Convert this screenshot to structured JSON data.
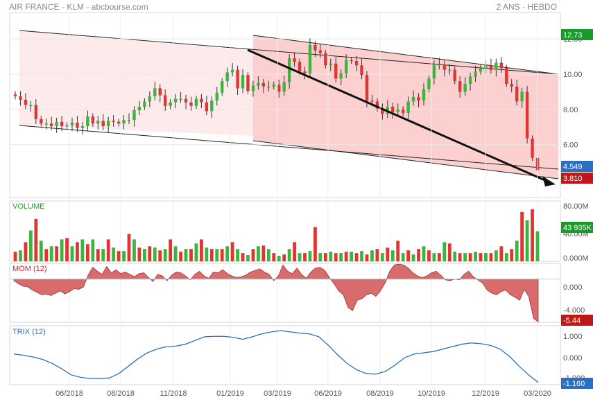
{
  "header": {
    "title": "AIR FRANCE - KLM - abcbourse.com",
    "period": "2 ANS - HEBDO"
  },
  "colors": {
    "up": "#3db53d",
    "down": "#e03535",
    "trix_line": "#2a6fc2",
    "mom_fill": "#d86b6b",
    "channel_light": "#fdebeb",
    "channel_dark": "#fdd0d0",
    "last_badge": "#2a6fc2",
    "high_badge": "#1a9a2a",
    "low_badge": "#c01818"
  },
  "x_ticks": [
    "06/2018",
    "08/2018",
    "11/2018",
    "01/2019",
    "03/2019",
    "06/2019",
    "08/2019",
    "10/2019",
    "12/2019",
    "03/2020"
  ],
  "price_panel": {
    "y_ticks": [
      "12.00",
      "10.00",
      "8.00",
      "6.00"
    ],
    "badge_high": "12.73",
    "badge_last": "4.549",
    "badge_low": "3.810"
  },
  "volume_panel": {
    "label": "VOLUME",
    "y_ticks": [
      "80.00M",
      "40.00M",
      "0.000M"
    ],
    "badge": "43 935K"
  },
  "mom_panel": {
    "label": "MOM (12)",
    "y_ticks": [
      "0.000",
      "-4.000"
    ],
    "badge": "-5.44"
  },
  "trix_panel": {
    "label": "TRIX (12)",
    "y_ticks": [
      "1.000",
      "0.000",
      "-1.000"
    ],
    "badge": "-1.160"
  },
  "chart_data": [
    {
      "type": "candlestick",
      "title": "AIR FRANCE - KLM",
      "frequency": "weekly",
      "ylim": [
        3.0,
        13.5
      ],
      "weeks": 102,
      "close": [
        8.75,
        8.55,
        8.25,
        8.25,
        7.45,
        7.2,
        7.2,
        7.05,
        7.3,
        7.05,
        7.1,
        7.25,
        6.95,
        7.05,
        7.6,
        7.2,
        7.35,
        7.05,
        7.35,
        7.3,
        7.2,
        7.4,
        7.4,
        7.95,
        8.15,
        8.45,
        8.75,
        9.2,
        8.8,
        8.2,
        8.4,
        8.6,
        8.6,
        8.4,
        8.2,
        8.6,
        8.4,
        7.9,
        8.5,
        8.95,
        9.6,
        10.1,
        10.25,
        9.2,
        9.95,
        9.05,
        9.35,
        9.5,
        9.3,
        9.3,
        9.4,
        9.0,
        9.55,
        10.9,
        10.7,
        10.15,
        10.05,
        11.65,
        11.35,
        11.2,
        10.5,
        10.6,
        9.75,
        10.05,
        10.8,
        10.75,
        10.5,
        9.95,
        8.5,
        8.45,
        8.05,
        7.75,
        8.15,
        7.85,
        8.0,
        7.8,
        8.45,
        8.7,
        8.5,
        9.15,
        9.75,
        10.5,
        10.55,
        10.25,
        10.25,
        9.6,
        9.0,
        9.45,
        9.85,
        10.15,
        10.35,
        10.5,
        10.25,
        10.65,
        10.35,
        9.45,
        9.3,
        8.45,
        9.0,
        6.35,
        5.25,
        4.55
      ],
      "high_label": 12.73,
      "last": 4.549,
      "low_label": 3.81,
      "channel_lines": "descending regression channel with trend arrow"
    },
    {
      "type": "bar",
      "title": "VOLUME",
      "unit": "M",
      "ylim": [
        0,
        80
      ],
      "values": [
        14,
        16,
        28,
        45,
        62,
        30,
        18,
        22,
        22,
        32,
        34,
        22,
        28,
        32,
        25,
        32,
        18,
        18,
        32,
        20,
        15,
        15,
        40,
        32,
        20,
        18,
        22,
        20,
        16,
        18,
        32,
        22,
        14,
        18,
        18,
        26,
        32,
        20,
        18,
        18,
        18,
        22,
        28,
        18,
        12,
        9,
        18,
        22,
        23,
        18,
        12,
        8,
        10,
        18,
        28,
        12,
        12,
        15,
        50,
        12,
        12,
        14,
        12,
        12,
        14,
        14,
        12,
        15,
        10,
        16,
        18,
        12,
        20,
        16,
        30,
        12,
        16,
        10,
        18,
        22,
        16,
        12,
        12,
        28,
        26,
        14,
        12,
        12,
        12,
        14,
        12,
        12,
        12,
        16,
        22,
        12,
        18,
        30,
        72,
        60,
        76,
        44
      ]
    },
    {
      "type": "area",
      "title": "MOM (12)",
      "ylim": [
        -5.5,
        2.0
      ],
      "values": [
        -0.2,
        -0.6,
        -0.9,
        -1.0,
        -1.4,
        -1.7,
        -2.0,
        -1.9,
        -2.1,
        -1.8,
        -1.5,
        -1.9,
        -1.6,
        -1.2,
        -1.3,
        -1.0,
        0.5,
        1.5,
        1.0,
        0.6,
        1.6,
        0.8,
        1.2,
        0.7,
        0.9,
        0.6,
        0.3,
        0.7,
        0.8,
        0.2,
        -0.3,
        0.6,
        0.4,
        -0.2,
        0.5,
        0.9,
        0.8,
        0.4,
        -0.1,
        0.6,
        1.0,
        0.4,
        0.1,
        0.9,
        0.8,
        1.2,
        0.7,
        0.4,
        0.2,
        0.3,
        0.5,
        0.9,
        1.1,
        1.3,
        0.9,
        0.6,
        -0.2,
        0.4,
        1.8,
        1.0,
        0.7,
        1.4,
        0.6,
        0.1,
        0.9,
        1.4,
        1.5,
        1.1,
        0.2,
        -0.6,
        -1.5,
        -2.0,
        -3.6,
        -4.0,
        -2.7,
        -2.5,
        -2.0,
        -1.8,
        -2.2,
        -1.5,
        -0.5,
        1.0,
        1.8,
        1.9,
        1.8,
        1.4,
        0.8,
        0.4,
        0.2,
        0.4,
        0.8,
        1.0,
        0.5,
        -0.1,
        -0.2,
        0.0,
        -0.1,
        0.6,
        1.0,
        0.3,
        -0.1,
        -0.5,
        -1.4,
        -1.8,
        -2.0,
        -1.6,
        -1.4,
        -2.0,
        -2.3,
        -2.7,
        -1.3,
        -2.3,
        -5.0,
        -5.44
      ]
    },
    {
      "type": "line",
      "title": "TRIX (12)",
      "ylim": [
        -1.25,
        1.15
      ],
      "values": [
        0.0,
        -0.05,
        -0.12,
        -0.22,
        -0.38,
        -0.6,
        -0.85,
        -0.95,
        -1.0,
        -1.0,
        -0.98,
        -0.8,
        -0.5,
        -0.2,
        0.05,
        0.2,
        0.3,
        0.32,
        0.4,
        0.55,
        0.7,
        0.72,
        0.72,
        0.68,
        0.6,
        0.7,
        0.82,
        0.9,
        0.95,
        0.9,
        0.85,
        0.82,
        0.7,
        0.35,
        -0.05,
        -0.4,
        -0.65,
        -0.8,
        -0.82,
        -0.7,
        -0.45,
        -0.15,
        0.0,
        0.05,
        0.1,
        0.2,
        0.3,
        0.4,
        0.45,
        0.42,
        0.35,
        0.2,
        -0.1,
        -0.5,
        -0.85,
        -1.16
      ]
    }
  ]
}
